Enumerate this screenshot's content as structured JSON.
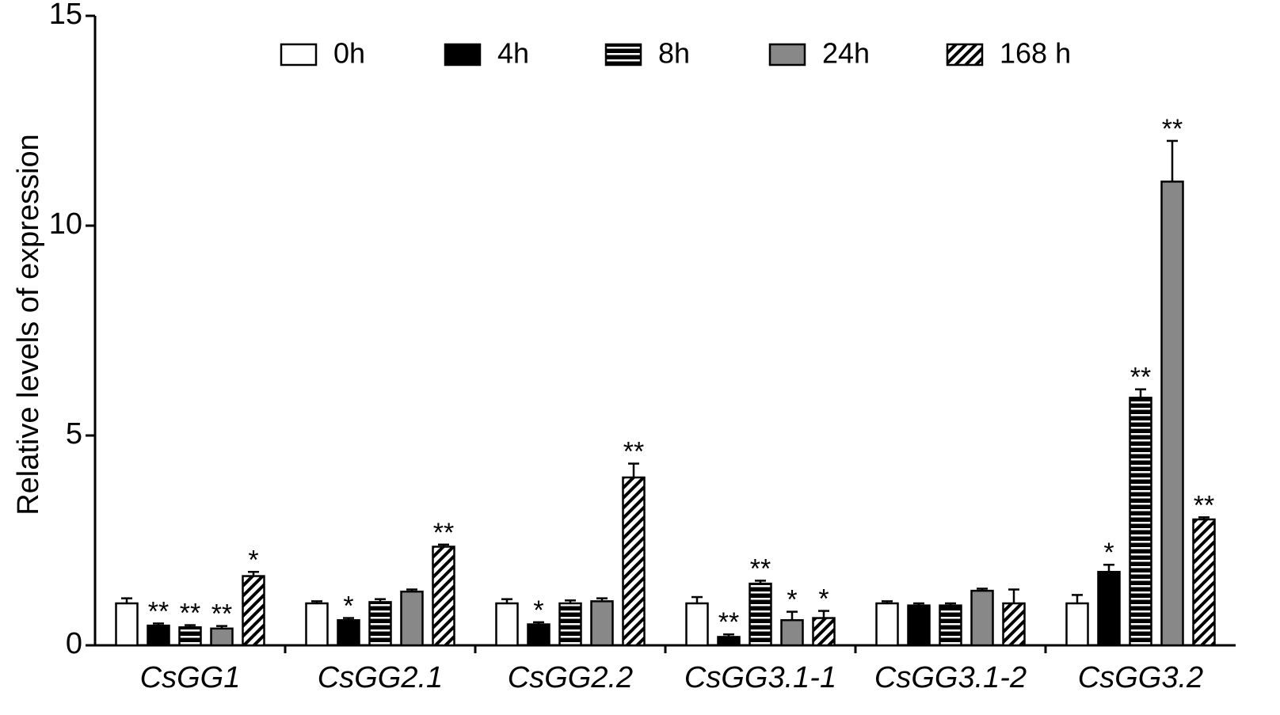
{
  "chart_data": {
    "type": "bar",
    "y_label": "Relative levels of expression",
    "categories": [
      "CsGG1",
      "CsGG2.1",
      "CsGG2.2",
      "CsGG3.1-1",
      "CsGG3.1-2",
      "CsGG3.2"
    ],
    "ylim": [
      0,
      15
    ],
    "yticks": [
      0,
      5,
      10,
      15
    ],
    "legend": "top",
    "series": [
      {
        "name": "0h",
        "color": "#ffffff",
        "pattern": "none",
        "values": [
          1.0,
          1.0,
          1.0,
          1.0,
          1.0,
          1.0
        ],
        "errors": [
          0.12,
          0.05,
          0.1,
          0.15,
          0.05,
          0.2
        ],
        "annotations": [
          null,
          null,
          null,
          null,
          null,
          null
        ]
      },
      {
        "name": "4h",
        "color": "#000000",
        "pattern": "none",
        "values": [
          0.47,
          0.6,
          0.5,
          0.2,
          0.95,
          1.75
        ],
        "errors": [
          0.05,
          0.05,
          0.05,
          0.06,
          0.05,
          0.17
        ],
        "annotations": [
          "**",
          "*",
          "*",
          "**",
          null,
          "*"
        ]
      },
      {
        "name": "8h",
        "color": "#000000",
        "pattern": "hlines",
        "values": [
          0.43,
          1.03,
          1.0,
          1.47,
          0.95,
          5.9
        ],
        "errors": [
          0.05,
          0.07,
          0.07,
          0.07,
          0.05,
          0.2
        ],
        "annotations": [
          "**",
          null,
          null,
          "**",
          null,
          "**"
        ]
      },
      {
        "name": "24h",
        "color": "#888888",
        "pattern": "none",
        "values": [
          0.4,
          1.28,
          1.05,
          0.6,
          1.3,
          11.05
        ],
        "errors": [
          0.06,
          0.05,
          0.07,
          0.2,
          0.05,
          0.97
        ],
        "annotations": [
          "**",
          null,
          null,
          "*",
          null,
          "**"
        ]
      },
      {
        "name": "168 h",
        "color": "#000000",
        "pattern": "diagonal",
        "values": [
          1.65,
          2.35,
          4.0,
          0.65,
          1.0,
          3.0
        ],
        "errors": [
          0.1,
          0.05,
          0.33,
          0.17,
          0.33,
          0.05
        ],
        "annotations": [
          "*",
          "**",
          "**",
          "*",
          null,
          "**"
        ]
      }
    ]
  }
}
